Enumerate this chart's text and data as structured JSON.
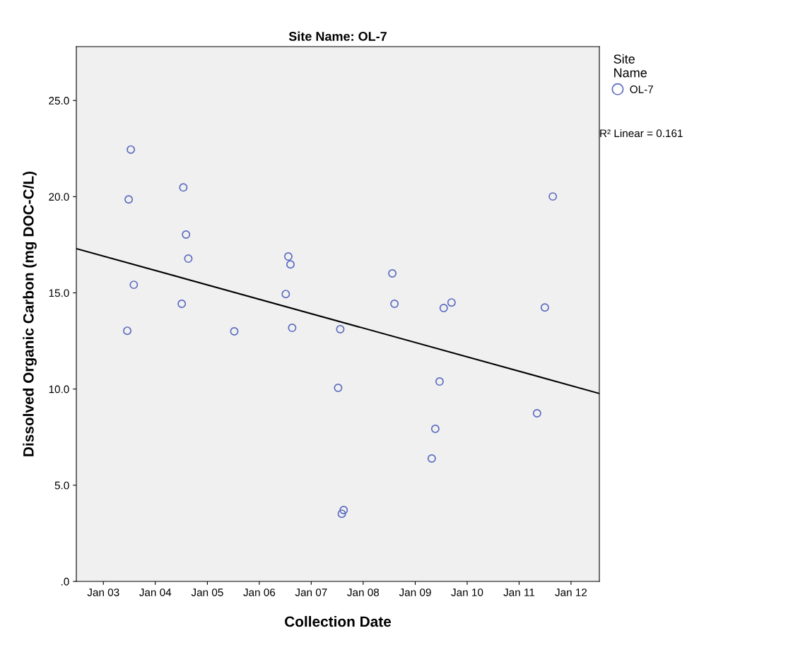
{
  "chart_data": {
    "type": "scatter",
    "title": "Site Name: OL-7",
    "xlabel": "Collection Date",
    "ylabel": "Dissolved Organic Carbon (mg DOC-C/L)",
    "legend_title": "Site\nName",
    "legend": "top right",
    "grid": false,
    "xlim": [
      "2002-06-25",
      "2012-07-18"
    ],
    "xticks": [
      {
        "value": "2003-01-01",
        "label": "Jan 03"
      },
      {
        "value": "2004-01-01",
        "label": "Jan 04"
      },
      {
        "value": "2005-01-01",
        "label": "Jan 05"
      },
      {
        "value": "2006-01-01",
        "label": "Jan 06"
      },
      {
        "value": "2007-01-01",
        "label": "Jan 07"
      },
      {
        "value": "2008-01-01",
        "label": "Jan 08"
      },
      {
        "value": "2009-01-01",
        "label": "Jan 09"
      },
      {
        "value": "2010-01-01",
        "label": "Jan 10"
      },
      {
        "value": "2011-01-01",
        "label": "Jan 11"
      },
      {
        "value": "2012-01-01",
        "label": "Jan 12"
      }
    ],
    "ylim": [
      0,
      27.8
    ],
    "yticks": [
      {
        "value": 0,
        "label": ".0"
      },
      {
        "value": 5,
        "label": "5.0"
      },
      {
        "value": 10,
        "label": "10.0"
      },
      {
        "value": 15,
        "label": "15.0"
      },
      {
        "value": 20,
        "label": "20.0"
      },
      {
        "value": 25,
        "label": "25.0"
      }
    ],
    "annotations": [
      "R² Linear = 0.161"
    ],
    "series": [
      {
        "name": "OL-7",
        "marker": "circle",
        "color": "#5b6bc0",
        "x": [
          "2003-07-13",
          "2003-06-28",
          "2003-08-03",
          "2003-06-18",
          "2004-07-16",
          "2004-08-04",
          "2004-08-20",
          "2004-07-05",
          "2005-07-09",
          "2006-07-24",
          "2006-08-08",
          "2006-07-06",
          "2006-08-20",
          "2007-07-24",
          "2007-07-09",
          "2007-08-17",
          "2007-08-04",
          "2008-07-24",
          "2008-08-08",
          "2009-07-20",
          "2009-09-13",
          "2009-06-21",
          "2009-05-22",
          "2009-04-27",
          "2011-08-26",
          "2011-07-01",
          "2011-05-07"
        ],
        "values": [
          22.45,
          19.86,
          15.42,
          13.03,
          20.48,
          18.03,
          16.78,
          14.43,
          13.0,
          16.89,
          16.48,
          14.94,
          13.18,
          13.11,
          10.06,
          3.71,
          3.52,
          16.01,
          14.43,
          14.21,
          14.5,
          10.39,
          7.93,
          6.39,
          20.01,
          14.24,
          8.74
        ]
      },
      {
        "type": "line",
        "marker": "none",
        "color": "#000000",
        "x": [
          "2002-06-25",
          "2012-07-18"
        ],
        "values": [
          17.3,
          9.77
        ]
      }
    ]
  }
}
